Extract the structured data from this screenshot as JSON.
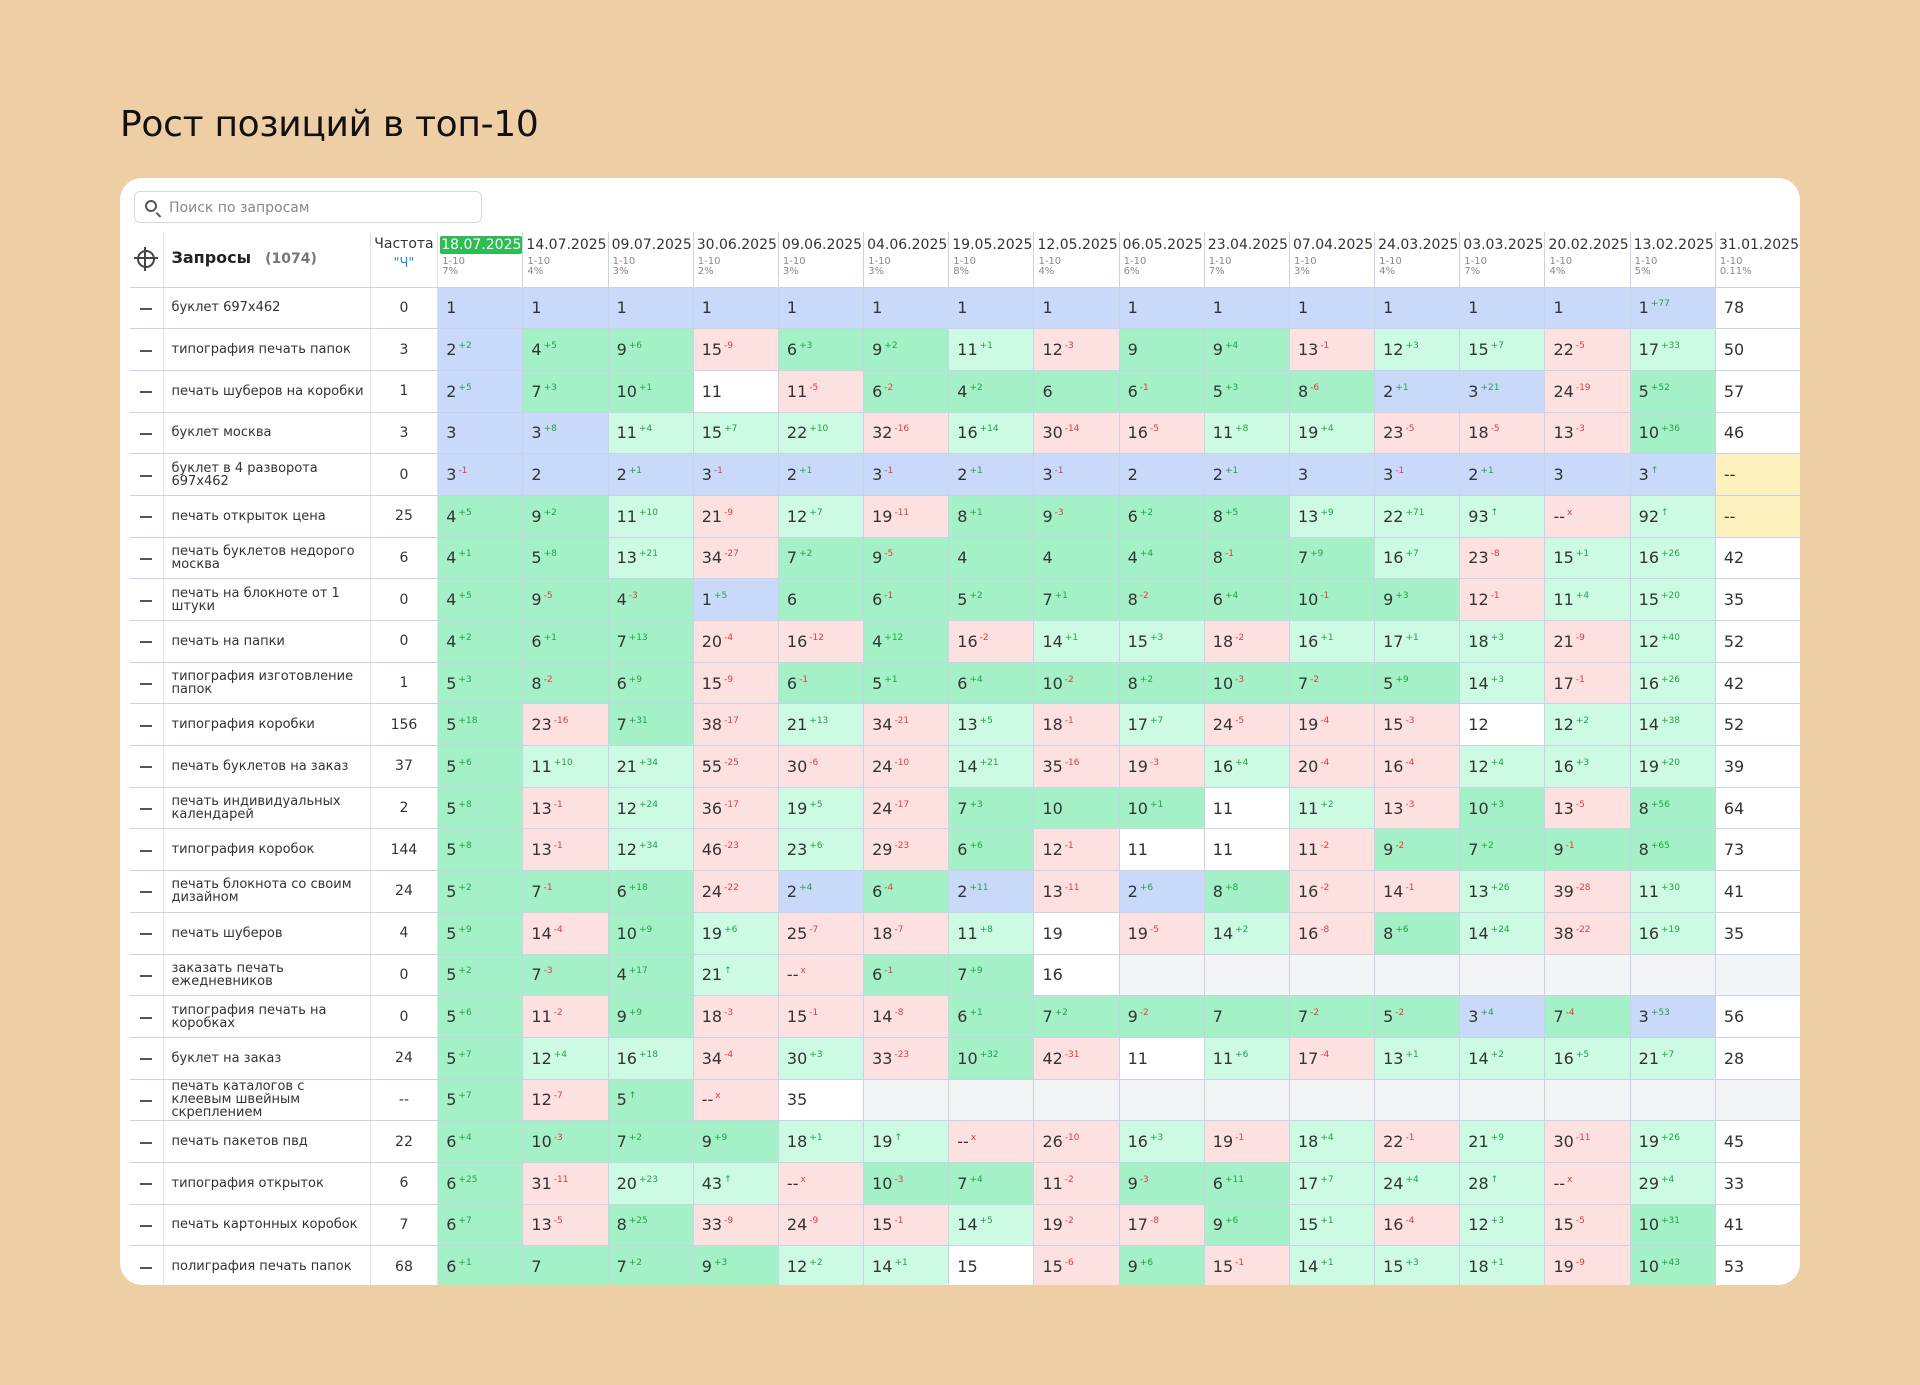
{
  "title": "Рост позиций в топ-10",
  "search": {
    "placeholder": "Поиск по запросам"
  },
  "table": {
    "query_header": "Запросы",
    "query_count": "(1074)",
    "freq_header": "Частота",
    "freq_sub": "\"Ч\"",
    "dates": [
      {
        "date": "18.07.2025",
        "range": "1-10",
        "pct": "7%",
        "current": true
      },
      {
        "date": "14.07.2025",
        "range": "1-10",
        "pct": "4%"
      },
      {
        "date": "09.07.2025",
        "range": "1-10",
        "pct": "3%"
      },
      {
        "date": "30.06.2025",
        "range": "1-10",
        "pct": "2%"
      },
      {
        "date": "09.06.2025",
        "range": "1-10",
        "pct": "3%"
      },
      {
        "date": "04.06.2025",
        "range": "1-10",
        "pct": "3%"
      },
      {
        "date": "19.05.2025",
        "range": "1-10",
        "pct": "8%"
      },
      {
        "date": "12.05.2025",
        "range": "1-10",
        "pct": "4%"
      },
      {
        "date": "06.05.2025",
        "range": "1-10",
        "pct": "6%"
      },
      {
        "date": "23.04.2025",
        "range": "1-10",
        "pct": "7%"
      },
      {
        "date": "07.04.2025",
        "range": "1-10",
        "pct": "3%"
      },
      {
        "date": "24.03.2025",
        "range": "1-10",
        "pct": "4%"
      },
      {
        "date": "03.03.2025",
        "range": "1-10",
        "pct": "7%"
      },
      {
        "date": "20.02.2025",
        "range": "1-10",
        "pct": "4%"
      },
      {
        "date": "13.02.2025",
        "range": "1-10",
        "pct": "5%"
      },
      {
        "date": "31.01.2025",
        "range": "1-10",
        "pct": "0.11%"
      }
    ],
    "rows": [
      {
        "q": "буклет 697х462",
        "f": "0",
        "c": [
          "1|",
          "1|",
          "1|",
          "1|",
          "1|",
          "1|",
          "1|",
          "1|",
          "1|",
          "1|",
          "1|",
          "1|",
          "1|",
          "1|",
          "1|+77"
        ],
        "last": "78",
        "lbg": ""
      },
      {
        "q": "типография печать папок",
        "f": "3",
        "c": [
          "2|+2",
          "4|+5",
          "9|+6",
          "15|-9",
          "6|+3",
          "9|+2",
          "11|+1",
          "12|-3",
          "9|",
          "9|+4",
          "13|-1",
          "12|+3",
          "15|+7",
          "22|-5",
          "17|+33"
        ],
        "last": "50",
        "lbg": ""
      },
      {
        "q": "печать шуберов на коробки",
        "f": "1",
        "c": [
          "2|+5",
          "7|+3",
          "10|+1",
          "11|",
          "11|-5",
          "6|-2",
          "4|+2",
          "6|",
          "6|-1",
          "5|+3",
          "8|-6",
          "2|+1",
          "3|+21",
          "24|-19",
          "5|+52"
        ],
        "last": "57",
        "lbg": ""
      },
      {
        "q": "буклет москва",
        "f": "3",
        "c": [
          "3|",
          "3|+8",
          "11|+4",
          "15|+7",
          "22|+10",
          "32|-16",
          "16|+14",
          "30|-14",
          "16|-5",
          "11|+8",
          "19|+4",
          "23|-5",
          "18|-5",
          "13|-3",
          "10|+36"
        ],
        "last": "46",
        "lbg": ""
      },
      {
        "q": "буклет в 4 разворота 697х462",
        "f": "0",
        "c": [
          "3|-1",
          "2|",
          "2|+1",
          "3|-1",
          "2|+1",
          "3|-1",
          "2|+1",
          "3|-1",
          "2|",
          "2|+1",
          "3|",
          "3|-1",
          "2|+1",
          "3|",
          "3|↑"
        ],
        "last": "--",
        "lbg": "yellow"
      },
      {
        "q": "печать открыток цена",
        "f": "25",
        "c": [
          "4|+5",
          "9|+2",
          "11|+10",
          "21|-9",
          "12|+7",
          "19|-11",
          "8|+1",
          "9|-3",
          "6|+2",
          "8|+5",
          "13|+9",
          "22|+71",
          "93|↑",
          "--|x",
          "92|↑"
        ],
        "last": "--",
        "lbg": "yellow"
      },
      {
        "q": "печать буклетов недорого москва",
        "f": "6",
        "c": [
          "4|+1",
          "5|+8",
          "13|+21",
          "34|-27",
          "7|+2",
          "9|-5",
          "4|",
          "4|",
          "4|+4",
          "8|-1",
          "7|+9",
          "16|+7",
          "23|-8",
          "15|+1",
          "16|+26"
        ],
        "last": "42",
        "lbg": ""
      },
      {
        "q": "печать на блокноте от 1 штуки",
        "f": "0",
        "c": [
          "4|+5",
          "9|-5",
          "4|-3",
          "1|+5",
          "6|",
          "6|-1",
          "5|+2",
          "7|+1",
          "8|-2",
          "6|+4",
          "10|-1",
          "9|+3",
          "12|-1",
          "11|+4",
          "15|+20"
        ],
        "last": "35",
        "lbg": ""
      },
      {
        "q": "печать на папки",
        "f": "0",
        "c": [
          "4|+2",
          "6|+1",
          "7|+13",
          "20|-4",
          "16|-12",
          "4|+12",
          "16|-2",
          "14|+1",
          "15|+3",
          "18|-2",
          "16|+1",
          "17|+1",
          "18|+3",
          "21|-9",
          "12|+40"
        ],
        "last": "52",
        "lbg": ""
      },
      {
        "q": "типография изготовление папок",
        "f": "1",
        "c": [
          "5|+3",
          "8|-2",
          "6|+9",
          "15|-9",
          "6|-1",
          "5|+1",
          "6|+4",
          "10|-2",
          "8|+2",
          "10|-3",
          "7|-2",
          "5|+9",
          "14|+3",
          "17|-1",
          "16|+26"
        ],
        "last": "42",
        "lbg": ""
      },
      {
        "q": "типография коробки",
        "f": "156",
        "c": [
          "5|+18",
          "23|-16",
          "7|+31",
          "38|-17",
          "21|+13",
          "34|-21",
          "13|+5",
          "18|-1",
          "17|+7",
          "24|-5",
          "19|-4",
          "15|-3",
          "12|",
          "12|+2",
          "14|+38"
        ],
        "last": "52",
        "lbg": ""
      },
      {
        "q": "печать буклетов на заказ",
        "f": "37",
        "c": [
          "5|+6",
          "11|+10",
          "21|+34",
          "55|-25",
          "30|-6",
          "24|-10",
          "14|+21",
          "35|-16",
          "19|-3",
          "16|+4",
          "20|-4",
          "16|-4",
          "12|+4",
          "16|+3",
          "19|+20"
        ],
        "last": "39",
        "lbg": ""
      },
      {
        "q": "печать индивидуальных календарей",
        "f": "2",
        "c": [
          "5|+8",
          "13|-1",
          "12|+24",
          "36|-17",
          "19|+5",
          "24|-17",
          "7|+3",
          "10|",
          "10|+1",
          "11|",
          "11|+2",
          "13|-3",
          "10|+3",
          "13|-5",
          "8|+56"
        ],
        "last": "64",
        "lbg": ""
      },
      {
        "q": "типография коробок",
        "f": "144",
        "c": [
          "5|+8",
          "13|-1",
          "12|+34",
          "46|-23",
          "23|+6",
          "29|-23",
          "6|+6",
          "12|-1",
          "11|",
          "11|",
          "11|-2",
          "9|-2",
          "7|+2",
          "9|-1",
          "8|+65"
        ],
        "last": "73",
        "lbg": ""
      },
      {
        "q": "печать блокнота со своим дизайном",
        "f": "24",
        "c": [
          "5|+2",
          "7|-1",
          "6|+18",
          "24|-22",
          "2|+4",
          "6|-4",
          "2|+11",
          "13|-11",
          "2|+6",
          "8|+8",
          "16|-2",
          "14|-1",
          "13|+26",
          "39|-28",
          "11|+30"
        ],
        "last": "41",
        "lbg": ""
      },
      {
        "q": "печать шуберов",
        "f": "4",
        "c": [
          "5|+9",
          "14|-4",
          "10|+9",
          "19|+6",
          "25|-7",
          "18|-7",
          "11|+8",
          "19|",
          "19|-5",
          "14|+2",
          "16|-8",
          "8|+6",
          "14|+24",
          "38|-22",
          "16|+19"
        ],
        "last": "35",
        "lbg": ""
      },
      {
        "q": "заказать печать ежедневников",
        "f": "0",
        "c": [
          "5|+2",
          "7|-3",
          "4|+17",
          "21|↑",
          "--|x",
          "6|-1",
          "7|+9",
          "16|",
          "",
          "",
          "",
          "",
          "",
          "",
          ""
        ],
        "last": "",
        "lbg": "gray"
      },
      {
        "q": "типография печать на коробках",
        "f": "0",
        "c": [
          "5|+6",
          "11|-2",
          "9|+9",
          "18|-3",
          "15|-1",
          "14|-8",
          "6|+1",
          "7|+2",
          "9|-2",
          "7|",
          "7|-2",
          "5|-2",
          "3|+4",
          "7|-4",
          "3|+53"
        ],
        "last": "56",
        "lbg": ""
      },
      {
        "q": "буклет на заказ",
        "f": "24",
        "c": [
          "5|+7",
          "12|+4",
          "16|+18",
          "34|-4",
          "30|+3",
          "33|-23",
          "10|+32",
          "42|-31",
          "11|",
          "11|+6",
          "17|-4",
          "13|+1",
          "14|+2",
          "16|+5",
          "21|+7"
        ],
        "last": "28",
        "lbg": ""
      },
      {
        "q": "печать каталогов с клеевым швейным скреплением",
        "f": "--",
        "c": [
          "5|+7",
          "12|-7",
          "5|↑",
          "--|x",
          "35|",
          "",
          "",
          "",
          "",
          "",
          "",
          "",
          "",
          "",
          ""
        ],
        "last": "",
        "lbg": "gray"
      },
      {
        "q": "печать пакетов пвд",
        "f": "22",
        "c": [
          "6|+4",
          "10|-3",
          "7|+2",
          "9|+9",
          "18|+1",
          "19|↑",
          "--|x",
          "26|-10",
          "16|+3",
          "19|-1",
          "18|+4",
          "22|-1",
          "21|+9",
          "30|-11",
          "19|+26"
        ],
        "last": "45",
        "lbg": ""
      },
      {
        "q": "типография открыток",
        "f": "6",
        "c": [
          "6|+25",
          "31|-11",
          "20|+23",
          "43|↑",
          "--|x",
          "10|-3",
          "7|+4",
          "11|-2",
          "9|-3",
          "6|+11",
          "17|+7",
          "24|+4",
          "28|↑",
          "--|x",
          "29|+4"
        ],
        "last": "33",
        "lbg": ""
      },
      {
        "q": "печать картонных коробок",
        "f": "7",
        "c": [
          "6|+7",
          "13|-5",
          "8|+25",
          "33|-9",
          "24|-9",
          "15|-1",
          "14|+5",
          "19|-2",
          "17|-8",
          "9|+6",
          "15|+1",
          "16|-4",
          "12|+3",
          "15|-5",
          "10|+31"
        ],
        "last": "41",
        "lbg": ""
      },
      {
        "q": "полиграфия печать папок",
        "f": "68",
        "c": [
          "6|+1",
          "7|",
          "7|+2",
          "9|+3",
          "12|+2",
          "14|+1",
          "15|",
          "15|-6",
          "9|+6",
          "15|-1",
          "14|+1",
          "15|+3",
          "18|+1",
          "19|-9",
          "10|+43"
        ],
        "last": "53",
        "lbg": ""
      }
    ]
  },
  "colors": {
    "background": "#edcea5",
    "current_date": "#2ebd55",
    "pos_1_3": "#c8d9fa",
    "pos_4_10": "#a4f0c7",
    "improved": "#ccfae3",
    "worsened": "#fde0e0",
    "up_delta": "#21a344",
    "down_delta": "#e23b3b"
  }
}
